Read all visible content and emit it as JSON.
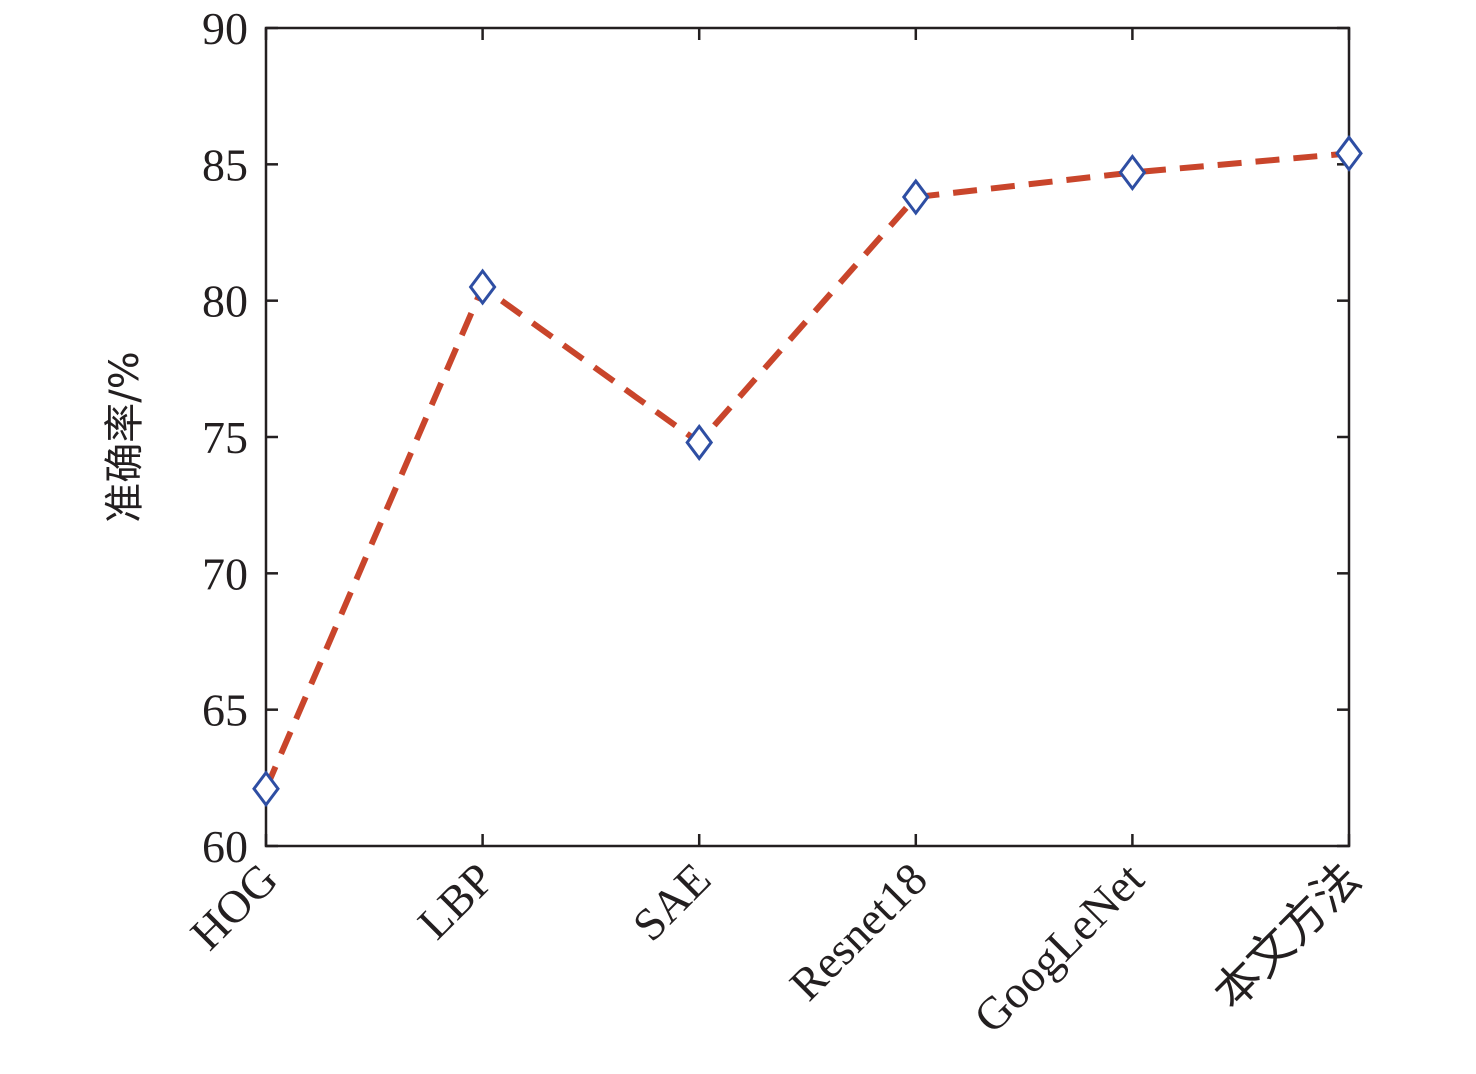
{
  "chart_data": {
    "type": "line",
    "title": "",
    "xlabel": "",
    "ylabel": "准确率/%",
    "categories": [
      "HOG",
      "LBP",
      "SAE",
      "Resnet18",
      "GoogLeNet",
      "本文方法"
    ],
    "series": [
      {
        "values": [
          62.1,
          80.5,
          74.8,
          83.8,
          84.7,
          85.4
        ]
      }
    ],
    "ylim": [
      60,
      90
    ],
    "yticks": [
      60,
      65,
      70,
      75,
      80,
      85,
      90
    ],
    "grid": false,
    "legend": "none",
    "line_style": "dashed",
    "marker": "diamond",
    "colors": {
      "line": "#c9452b",
      "marker": "#2e4ea3",
      "axis": "#231f20"
    }
  }
}
